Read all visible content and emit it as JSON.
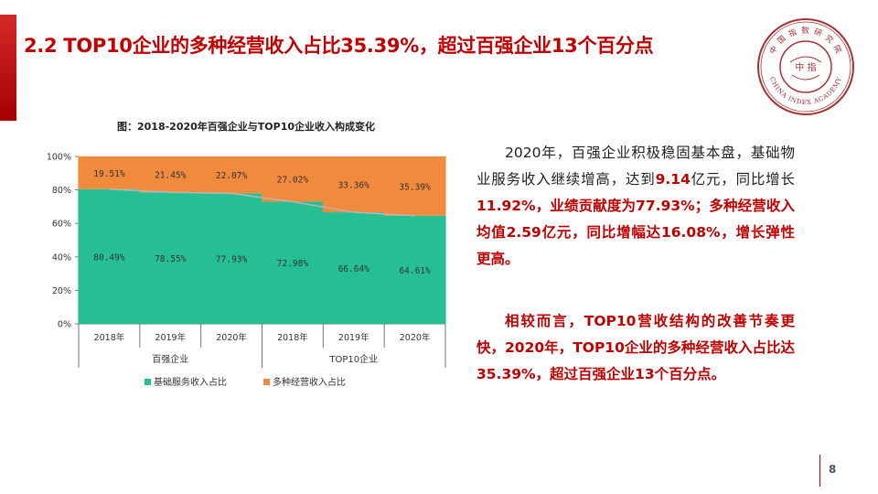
{
  "colors": {
    "accent": "#c00000",
    "green": "#26bf93",
    "orange": "#f08a3c",
    "trend_line": "#b7b7b7"
  },
  "title": "2.2 TOP10企业的多种经营收入占比35.39%，超过百强企业13个百分点",
  "logo": {
    "ring_text": "中 国 指 数 研 究 院",
    "english_text": "CHINA INDEX ACADEMY",
    "center_text": "中 指"
  },
  "chart_data": {
    "type": "bar",
    "stacked": true,
    "title": "图：2018-2020年百强企业与TOP10企业收入构成变化",
    "categories": [
      "2018年",
      "2019年",
      "2020年",
      "2018年",
      "2019年",
      "2020年"
    ],
    "groups": [
      {
        "label": "百强企业",
        "count": 3
      },
      {
        "label": "TOP10企业",
        "count": 3
      }
    ],
    "series": [
      {
        "name": "基础服务收入占比",
        "values": [
          80.49,
          78.55,
          77.93,
          72.98,
          66.64,
          64.61
        ],
        "labels": [
          "80.49%",
          "78.55%",
          "77.93%",
          "72.98%",
          "66.64%",
          "64.61%"
        ]
      },
      {
        "name": "多种经营收入占比",
        "values": [
          19.51,
          21.45,
          22.07,
          27.02,
          33.36,
          35.39
        ],
        "labels": [
          "19.51%",
          "21.45%",
          "22.07%",
          "27.02%",
          "33.36%",
          "35.39%"
        ]
      }
    ],
    "yticks": [
      "0%",
      "20%",
      "40%",
      "60%",
      "80%",
      "100%"
    ],
    "ylim": [
      0,
      100
    ],
    "legend_position": "bottom"
  },
  "text": {
    "p1_a": "2020年，百强企业积极稳固基本盘，基础物业服务收入继续增高，达到",
    "p1_b": "9.14",
    "p1_c": "亿元，同比增长",
    "p1_d": "11.92%，业绩贡献度为77.93%；多种经营收入均值2.59亿元，同比增幅达16.08%，增长弹性更高。",
    "p2": "相较而言，TOP10营收结构的改善节奏更快，2020年，TOP10企业的多种经营收入占比达35.39%，超过百强企业13个百分点。"
  },
  "page_number": "8"
}
